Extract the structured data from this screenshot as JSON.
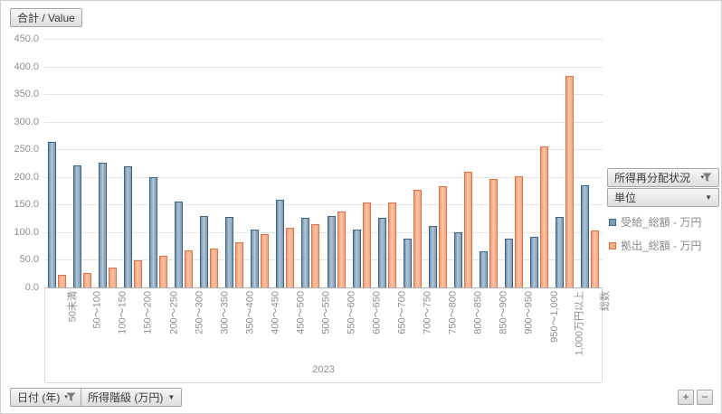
{
  "value_field": {
    "label": "合計 / Value"
  },
  "filter_fields": {
    "redistribution_label": "所得再分配状況",
    "unit_label": "単位"
  },
  "axis_fields": {
    "date_label": "日付 (年)",
    "income_class_label": "所得階級 (万円)"
  },
  "icons": {
    "dropdown_glyph": "▼",
    "filter_caret_glyph": "▾"
  },
  "zoom_controls": {
    "plus": "+",
    "minus": "−"
  },
  "legend": {
    "items": [
      {
        "label": "受給_総額 - 万円",
        "color": "#7d9cb8",
        "border": "#3c6488"
      },
      {
        "label": "拠出_総額 - 万円",
        "color": "#f3ab88",
        "border": "#e0703f"
      }
    ]
  },
  "chart_data": {
    "type": "bar",
    "title": "",
    "group_label": "2023",
    "xlabel": "所得階級 (万円)",
    "ylabel": "",
    "ylim": [
      0,
      450
    ],
    "grid": true,
    "legend_position": "right",
    "yticks": [
      "450.0",
      "400.0",
      "350.0",
      "300.0",
      "250.0",
      "200.0",
      "150.0",
      "100.0",
      "50.0",
      "0.0"
    ],
    "categories": [
      "50未満",
      "50〜100",
      "100〜150",
      "150〜200",
      "200〜250",
      "250〜300",
      "300〜350",
      "350〜400",
      "400〜450",
      "450〜500",
      "500〜550",
      "550〜600",
      "600〜650",
      "650〜700",
      "700〜750",
      "750〜800",
      "800〜850",
      "850〜900",
      "900〜950",
      "950〜1,000",
      "1,000万円以上",
      "総数"
    ],
    "series": [
      {
        "name": "受給_総額 - 万円",
        "color": "#7d9cb8",
        "border": "#3c6488",
        "gradient": [
          "#6f92af",
          "#b3c5d3",
          "#7b9bb6"
        ],
        "values": [
          263,
          221,
          225,
          220,
          199,
          156,
          130,
          128,
          104,
          159,
          126,
          130,
          104,
          126,
          89,
          112,
          100,
          65,
          88,
          91,
          127,
          185
        ]
      },
      {
        "name": "拠出_総額 - 万円",
        "color": "#f3ab88",
        "border": "#e0703f",
        "gradient": [
          "#f09c77",
          "#f9c5a7",
          "#f2a583"
        ],
        "values": [
          23,
          26,
          36,
          49,
          57,
          67,
          70,
          82,
          96,
          108,
          115,
          137,
          153,
          153,
          177,
          183,
          210,
          197,
          202,
          256,
          383,
          103
        ]
      }
    ]
  }
}
